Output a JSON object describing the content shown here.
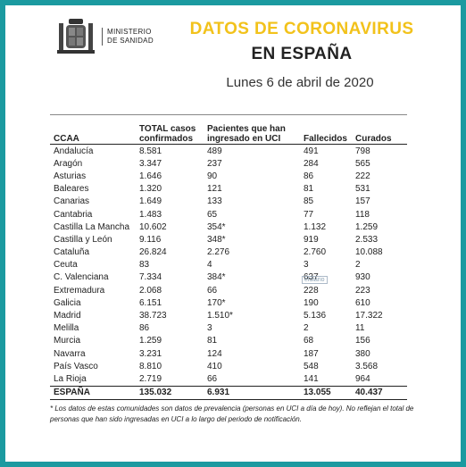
{
  "header": {
    "ministry_line1": "MINISTERIO",
    "ministry_line2": "DE SANIDAD",
    "title_line1": "DATOS DE CORONAVIRUS",
    "title_line2": "EN ESPAÑA",
    "date": "Lunes 6 de abril de 2020"
  },
  "colors": {
    "frame": "#1b9aa0",
    "title_yellow": "#f2c21b"
  },
  "table": {
    "headers": [
      "CCAA",
      "TOTAL casos\nconfirmados",
      "Pacientes que han\ningresado en UCI",
      "Fallecidos",
      "Curados"
    ],
    "rows": [
      [
        "Andalucía",
        "8.581",
        "489",
        "491",
        "798"
      ],
      [
        "Aragón",
        "3.347",
        "237",
        "284",
        "565"
      ],
      [
        "Asturias",
        "1.646",
        "90",
        "86",
        "222"
      ],
      [
        "Baleares",
        "1.320",
        "121",
        "81",
        "531"
      ],
      [
        "Canarias",
        "1.649",
        "133",
        "85",
        "157"
      ],
      [
        "Cantabria",
        "1.483",
        "65",
        "77",
        "118"
      ],
      [
        "Castilla La Mancha",
        "10.602",
        "354*",
        "1.132",
        "1.259"
      ],
      [
        "Castilla y León",
        "9.116",
        "348*",
        "919",
        "2.533"
      ],
      [
        "Cataluña",
        "26.824",
        "2.276",
        "2.760",
        "10.088"
      ],
      [
        "Ceuta",
        "83",
        "4",
        "3",
        "2"
      ],
      [
        "C. Valenciana",
        "7.334",
        "384*",
        "637",
        "930"
      ],
      [
        "Extremadura",
        "2.068",
        "66",
        "228",
        "223"
      ],
      [
        "Galicia",
        "6.151",
        "170*",
        "190",
        "610"
      ],
      [
        "Madrid",
        "38.723",
        "1.510*",
        "5.136",
        "17.322"
      ],
      [
        "Melilla",
        "86",
        "3",
        "2",
        "11"
      ],
      [
        "Murcia",
        "1.259",
        "81",
        "68",
        "156"
      ],
      [
        "Navarra",
        "3.231",
        "124",
        "187",
        "380"
      ],
      [
        "País Vasco",
        "8.810",
        "410",
        "548",
        "3.568"
      ],
      [
        "La Rioja",
        "2.719",
        "66",
        "141",
        "964"
      ]
    ],
    "total": [
      "ESPAÑA",
      "135.032",
      "6.931",
      "13.055",
      "40.437"
    ]
  },
  "footnote": "* Los datos de estas comunidades son datos de prevalencia (personas en UCI a día de hoy). No reflejan el total de personas que han sido ingresadas en UCI a lo largo del periodo de notificación.",
  "watermark": "eldiario"
}
